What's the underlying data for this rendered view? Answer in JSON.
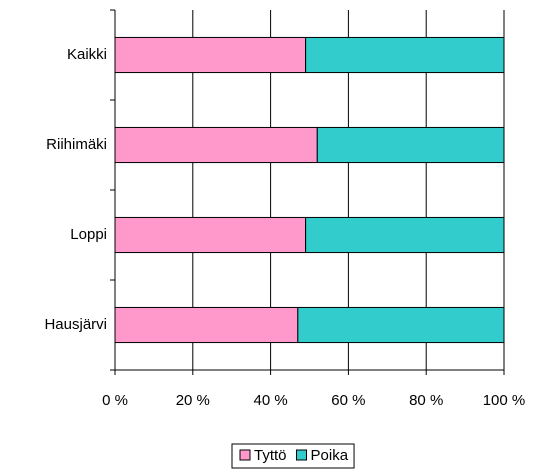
{
  "chart_data": {
    "type": "stacked_bar_horizontal",
    "categories": [
      "Kaikki",
      "Riihimäki",
      "Loppi",
      "Hausjärvi"
    ],
    "series": [
      {
        "name": "Tyttö",
        "color": "#ff99cc",
        "values": [
          49,
          52,
          49,
          47
        ]
      },
      {
        "name": "Poika",
        "color": "#33cccc",
        "values": [
          51,
          48,
          51,
          53
        ]
      }
    ],
    "xlim": [
      0,
      100
    ],
    "xticks": [
      {
        "value": 0,
        "label": "0 %"
      },
      {
        "value": 20,
        "label": "20 %"
      },
      {
        "value": 40,
        "label": "40 %"
      },
      {
        "value": 60,
        "label": "60 %"
      },
      {
        "value": 80,
        "label": "80 %"
      },
      {
        "value": 100,
        "label": "100 %"
      }
    ],
    "grid": true,
    "legend": "bottom"
  }
}
